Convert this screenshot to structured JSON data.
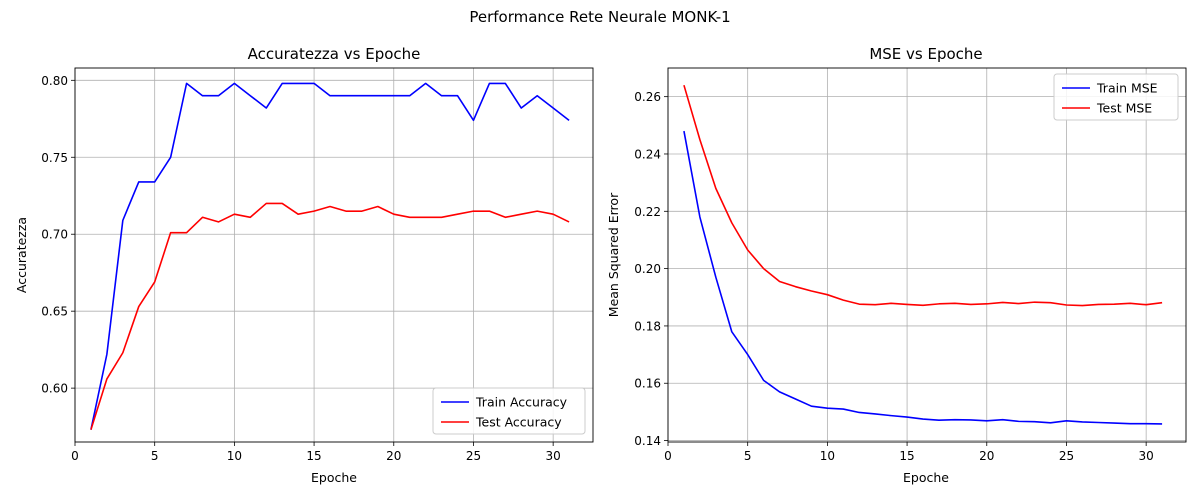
{
  "figure": {
    "suptitle": "Performance Rete Neurale MONK-1"
  },
  "chart_data": [
    {
      "type": "line",
      "title": "Accuratezza vs Epoche",
      "xlabel": "Epoche",
      "ylabel": "Accuratezza",
      "xlim": [
        0,
        32.5
      ],
      "ylim": [
        0.565,
        0.808
      ],
      "xticks": [
        0,
        5,
        10,
        15,
        20,
        25,
        30
      ],
      "yticks": [
        0.6,
        0.65,
        0.7,
        0.75,
        0.8
      ],
      "ytick_decimals": 2,
      "grid": true,
      "legend": "lower-right",
      "x": [
        1,
        2,
        3,
        4,
        5,
        6,
        7,
        8,
        9,
        10,
        11,
        12,
        13,
        14,
        15,
        16,
        17,
        18,
        19,
        20,
        21,
        22,
        23,
        24,
        25,
        26,
        27,
        28,
        29,
        30,
        31
      ],
      "series": [
        {
          "name": "Train Accuracy",
          "color": "#0000ff",
          "values": [
            0.573,
            0.622,
            0.709,
            0.734,
            0.734,
            0.75,
            0.798,
            0.79,
            0.79,
            0.798,
            0.79,
            0.782,
            0.798,
            0.798,
            0.798,
            0.79,
            0.79,
            0.79,
            0.79,
            0.79,
            0.79,
            0.798,
            0.79,
            0.79,
            0.774,
            0.798,
            0.798,
            0.782,
            0.79,
            0.782,
            0.774
          ]
        },
        {
          "name": "Test Accuracy",
          "color": "#ff0000",
          "values": [
            0.573,
            0.606,
            0.623,
            0.653,
            0.669,
            0.701,
            0.701,
            0.711,
            0.708,
            0.713,
            0.711,
            0.72,
            0.72,
            0.713,
            0.715,
            0.718,
            0.715,
            0.715,
            0.718,
            0.713,
            0.711,
            0.711,
            0.711,
            0.713,
            0.715,
            0.715,
            0.711,
            0.713,
            0.715,
            0.713,
            0.708
          ]
        }
      ]
    },
    {
      "type": "line",
      "title": "MSE vs Epoche",
      "xlabel": "Epoche",
      "ylabel": "Mean Squared Error",
      "xlim": [
        0,
        32.5
      ],
      "ylim": [
        0.1395,
        0.27
      ],
      "xticks": [
        0,
        5,
        10,
        15,
        20,
        25,
        30
      ],
      "yticks": [
        0.14,
        0.16,
        0.18,
        0.2,
        0.22,
        0.24,
        0.26
      ],
      "ytick_decimals": 2,
      "grid": true,
      "legend": "top-right",
      "x": [
        1,
        2,
        3,
        4,
        5,
        6,
        7,
        8,
        9,
        10,
        11,
        12,
        13,
        14,
        15,
        16,
        17,
        18,
        19,
        20,
        21,
        22,
        23,
        24,
        25,
        26,
        27,
        28,
        29,
        30,
        31
      ],
      "series": [
        {
          "name": "Train MSE",
          "color": "#0000ff",
          "values": [
            0.248,
            0.218,
            0.197,
            0.178,
            0.17,
            0.161,
            0.157,
            0.1545,
            0.152,
            0.1513,
            0.151,
            0.1498,
            0.1493,
            0.1487,
            0.1482,
            0.1475,
            0.1471,
            0.1473,
            0.1472,
            0.1469,
            0.1473,
            0.1467,
            0.1466,
            0.1462,
            0.1469,
            0.1465,
            0.1463,
            0.1461,
            0.1459,
            0.1459,
            0.1458
          ]
        },
        {
          "name": "Test MSE",
          "color": "#ff0000",
          "values": [
            0.264,
            0.245,
            0.228,
            0.216,
            0.2065,
            0.2,
            0.1955,
            0.1937,
            0.1922,
            0.1909,
            0.189,
            0.1876,
            0.1874,
            0.1879,
            0.1875,
            0.1872,
            0.1877,
            0.1879,
            0.1875,
            0.1877,
            0.1882,
            0.1878,
            0.1883,
            0.1881,
            0.1873,
            0.1871,
            0.1875,
            0.1876,
            0.1879,
            0.1874,
            0.1881
          ]
        }
      ]
    }
  ]
}
